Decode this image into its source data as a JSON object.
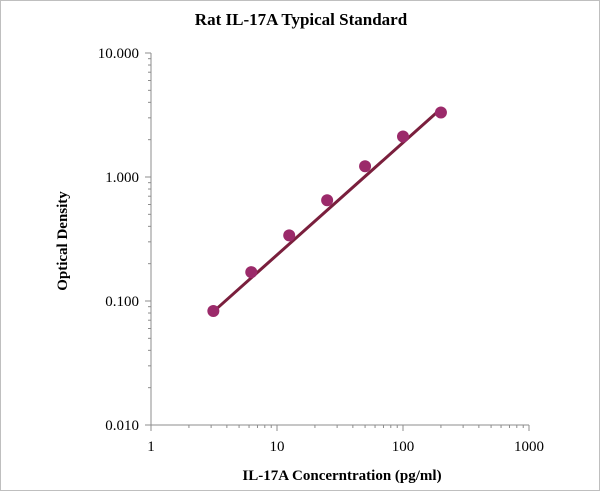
{
  "chart_data": {
    "type": "scatter",
    "title": "Rat IL-17A Typical Standard",
    "xlabel": "IL-17A Concerntration (pg/ml)",
    "ylabel": "Optical Density",
    "x_scale": "log",
    "y_scale": "log",
    "xlim": [
      1,
      1000
    ],
    "ylim": [
      0.01,
      10
    ],
    "x_tick_labels": [
      "1",
      "10",
      "100",
      "1000"
    ],
    "y_tick_labels": [
      "0.010",
      "0.100",
      "1.000",
      "10.000"
    ],
    "grid": false,
    "series": [
      {
        "points": [
          {
            "x": 3.125,
            "y": 0.083
          },
          {
            "x": 6.25,
            "y": 0.171
          },
          {
            "x": 12.5,
            "y": 0.338
          },
          {
            "x": 25,
            "y": 0.649
          },
          {
            "x": 50,
            "y": 1.22
          },
          {
            "x": 100,
            "y": 2.12
          },
          {
            "x": 200,
            "y": 3.31
          }
        ],
        "color": "#9b2a6a"
      }
    ],
    "trendline": {
      "x": [
        3.125,
        200
      ],
      "y": [
        0.082,
        3.55
      ],
      "color": "#7a1f3d"
    }
  }
}
